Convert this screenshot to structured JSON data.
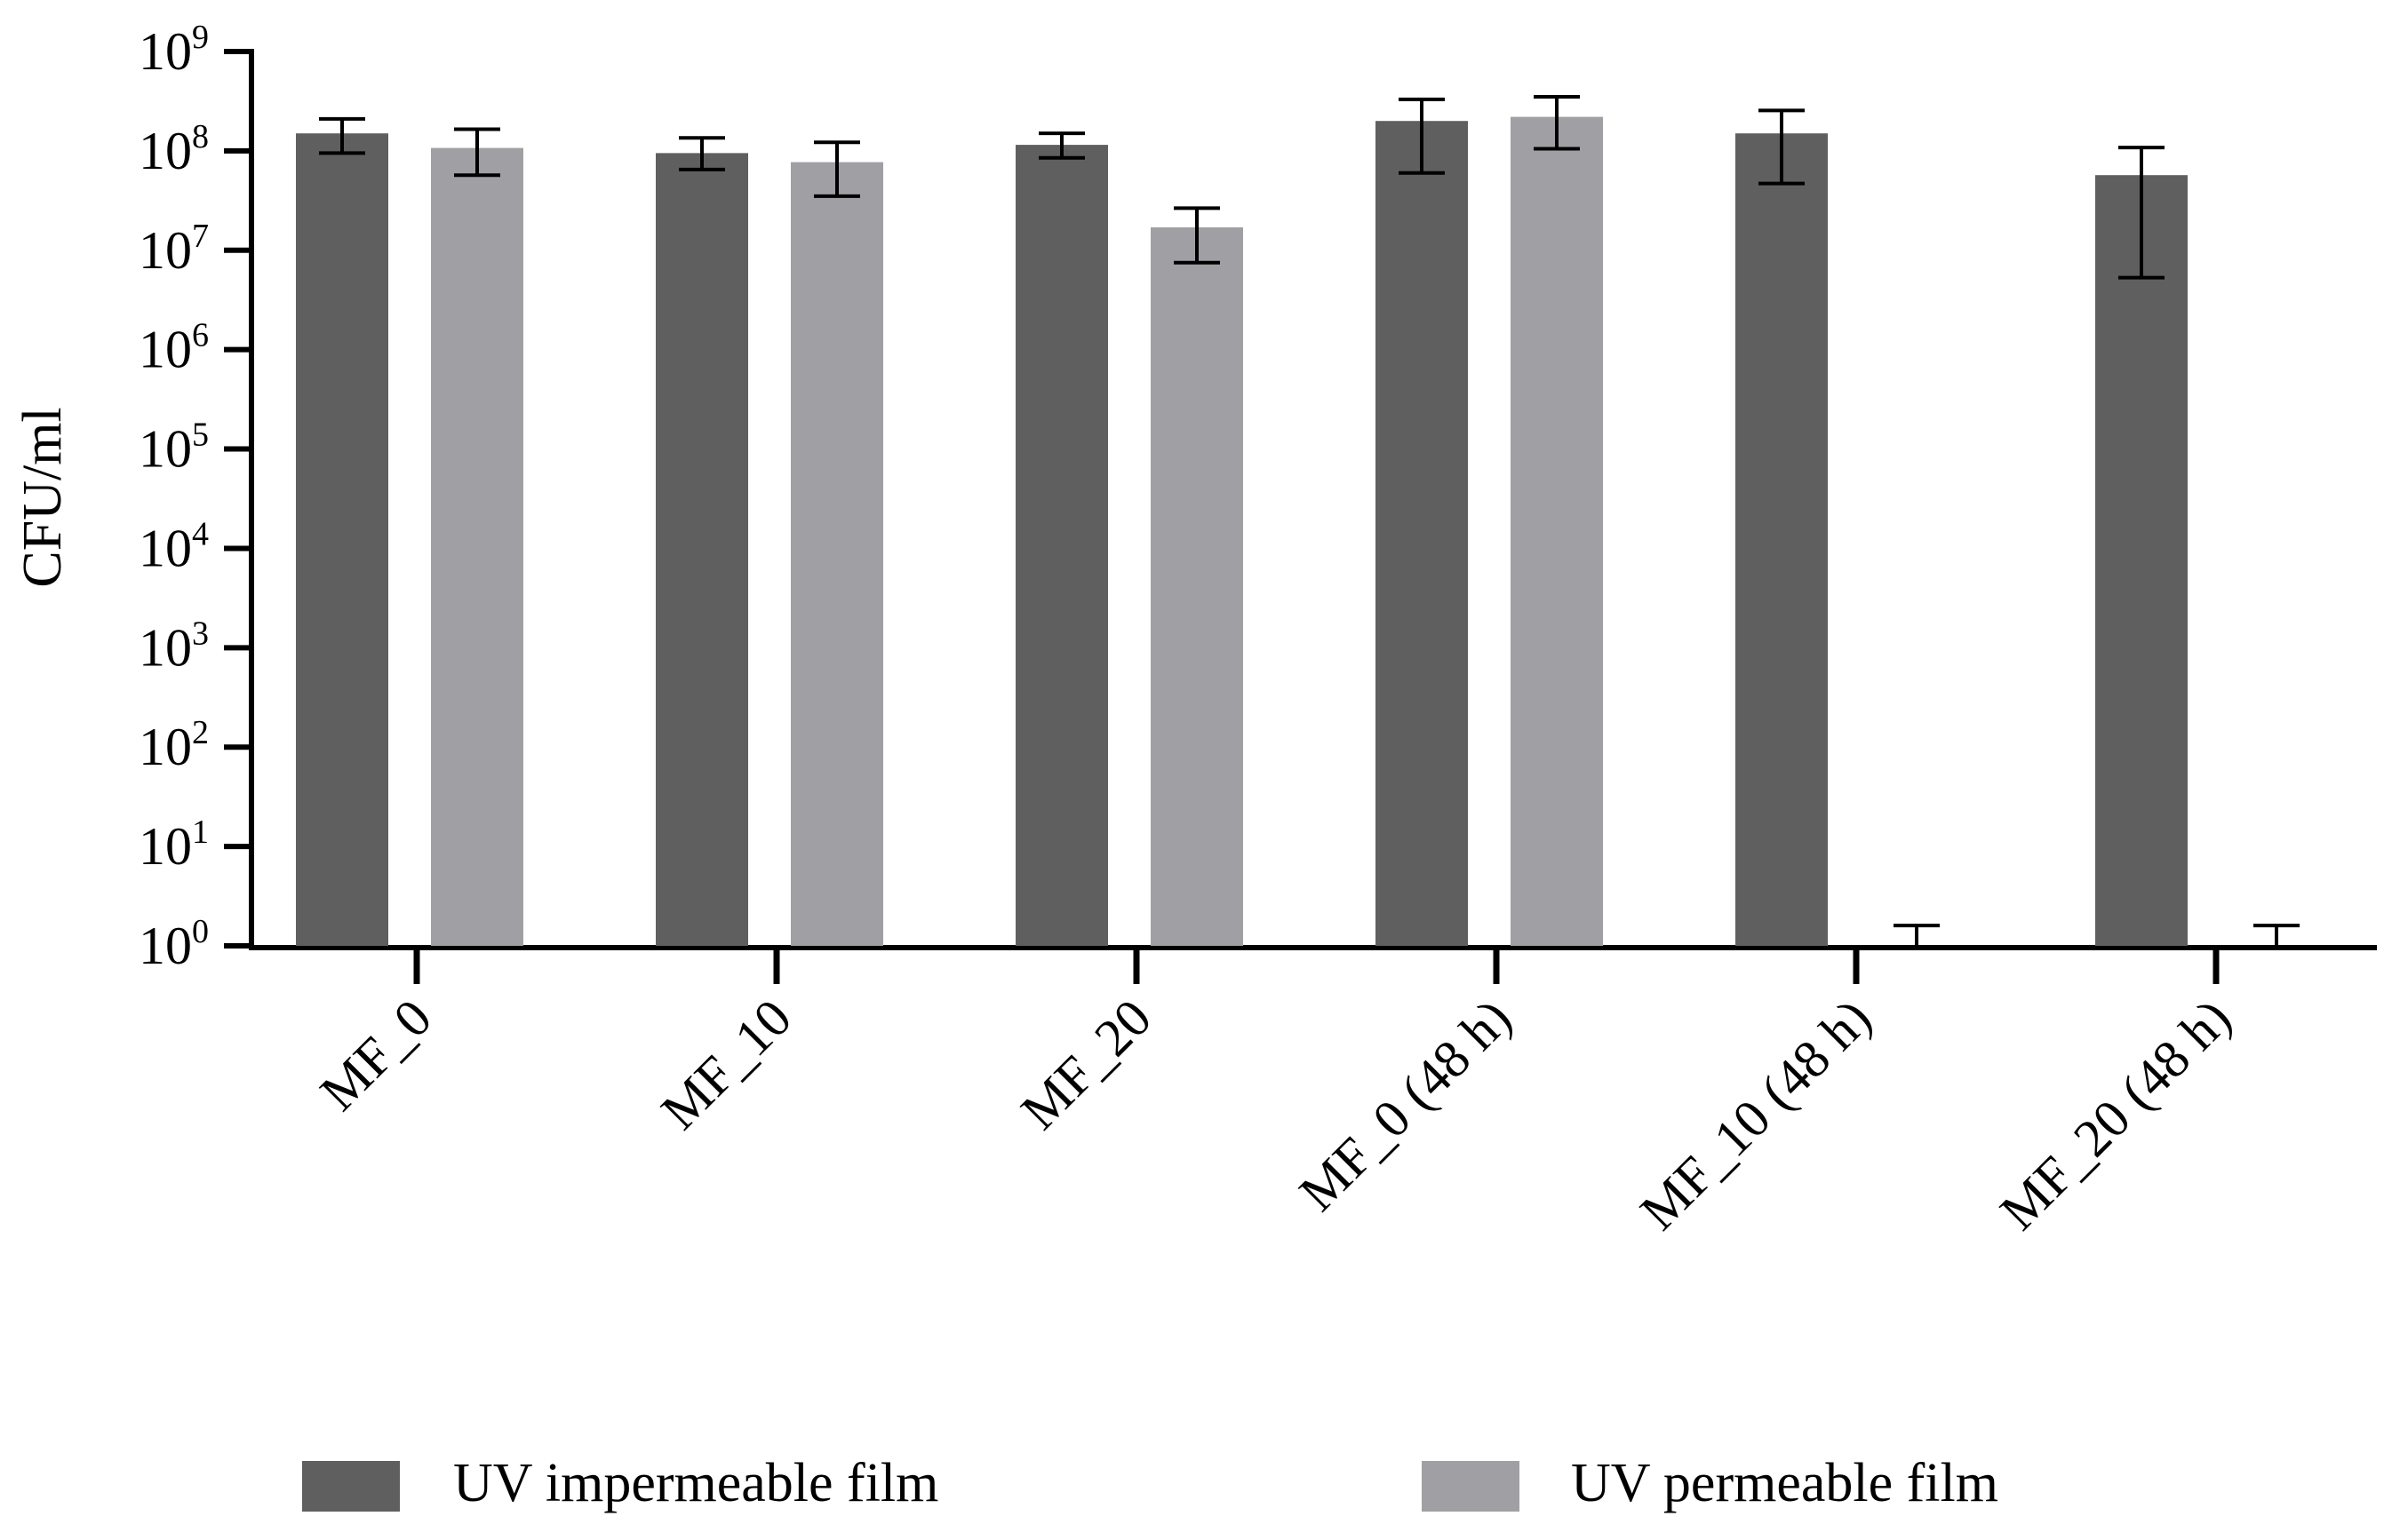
{
  "chart_data": {
    "type": "bar",
    "title": "",
    "xlabel": "",
    "ylabel": "CFU/ml",
    "yscale": "log",
    "ylim": [
      1,
      1000000000
    ],
    "y_ticks": [
      {
        "value": 1,
        "base": "10",
        "exp": "0"
      },
      {
        "value": 10,
        "base": "10",
        "exp": "1"
      },
      {
        "value": 100,
        "base": "10",
        "exp": "2"
      },
      {
        "value": 1000,
        "base": "10",
        "exp": "3"
      },
      {
        "value": 10000,
        "base": "10",
        "exp": "4"
      },
      {
        "value": 100000,
        "base": "10",
        "exp": "5"
      },
      {
        "value": 1000000,
        "base": "10",
        "exp": "6"
      },
      {
        "value": 10000000,
        "base": "10",
        "exp": "7"
      },
      {
        "value": 100000000,
        "base": "10",
        "exp": "8"
      },
      {
        "value": 1000000000,
        "base": "10",
        "exp": "9"
      }
    ],
    "categories": [
      "MF_0",
      "MF_10",
      "MF_20",
      "MF_0 (48 h)",
      "MF_10 (48 h)",
      "MF_20 (48 h)"
    ],
    "series": [
      {
        "name": "UV impermeable film",
        "color": "#5f5f5f",
        "values": [
          150000000,
          95000000,
          115000000,
          200000000,
          150000000,
          57000000
        ],
        "err_low": [
          95000000,
          65000000,
          85000000,
          60000000,
          47000000,
          5300000
        ],
        "err_high": [
          210000000,
          135000000,
          150000000,
          330000000,
          255000000,
          108000000
        ]
      },
      {
        "name": "UV permeable film",
        "color": "#a0a0a4",
        "values": [
          107000000,
          77000000,
          17000000,
          220000000,
          1,
          1
        ],
        "err_low": [
          57000000,
          35000000,
          7500000,
          105000000,
          1,
          1
        ],
        "err_high": [
          165000000,
          122000000,
          26500000,
          350000000,
          1.6,
          1.6
        ]
      }
    ],
    "legend": "bottom"
  }
}
